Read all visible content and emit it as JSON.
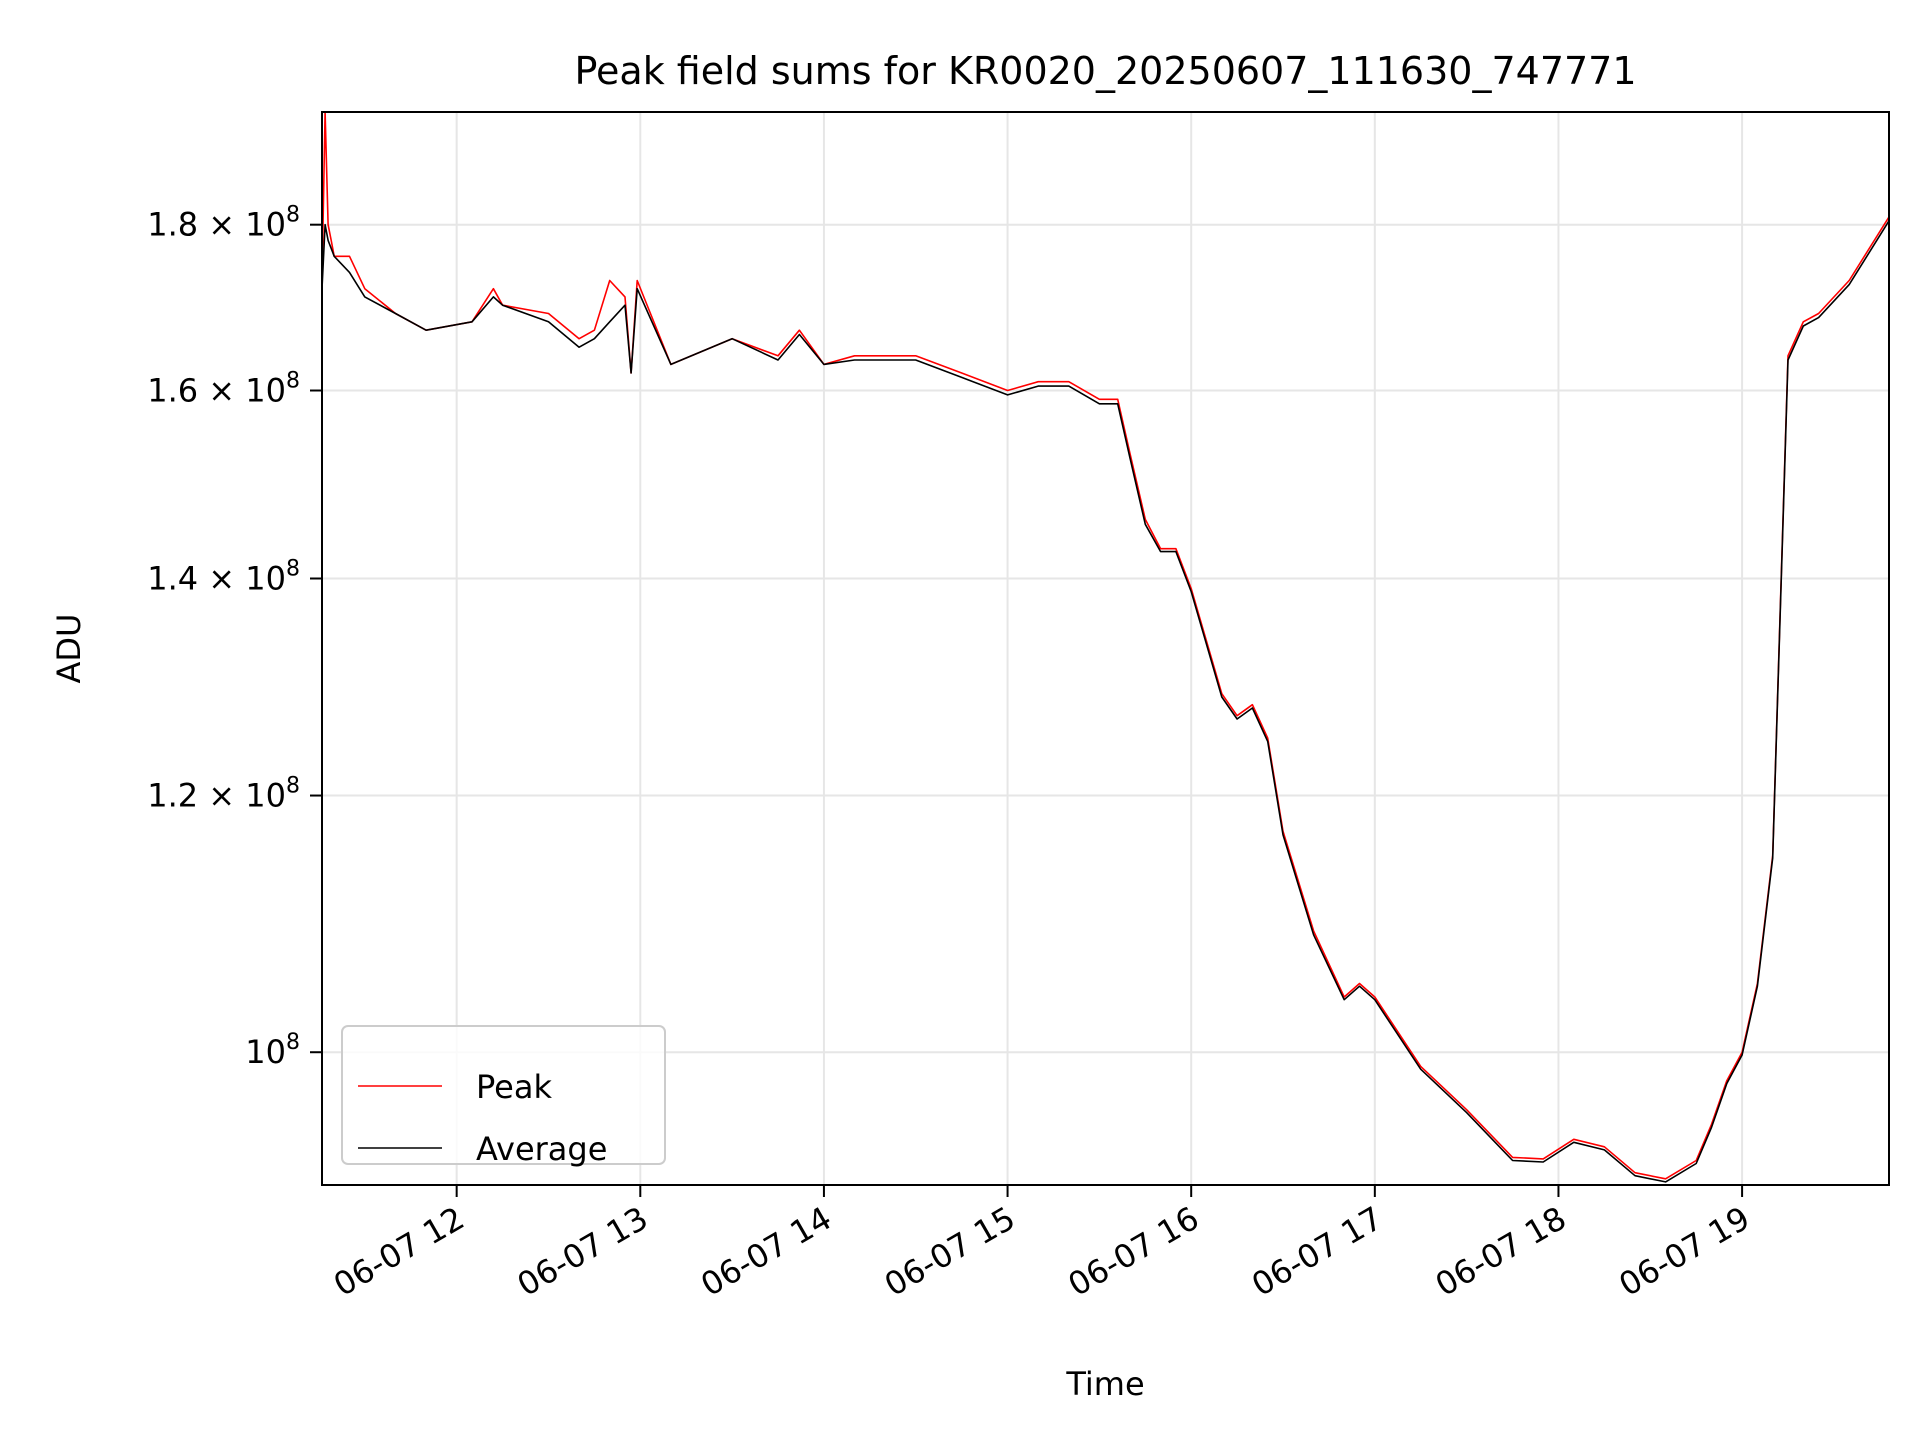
{
  "chart_data": {
    "type": "line",
    "title": "Peak field sums for KR0020_20250607_111630_747771",
    "xlabel": "Time",
    "ylabel": "ADU",
    "yscale": "log",
    "grid": true,
    "legend_placement": "lower-left",
    "xlim": [
      "2025-06-07 11:16",
      "2025-06-07 19:48"
    ],
    "ylim": [
      91000000,
      195000000
    ],
    "x_ticks": [
      {
        "at": "2025-06-07 12:00",
        "label": "06-07 12"
      },
      {
        "at": "2025-06-07 13:00",
        "label": "06-07 13"
      },
      {
        "at": "2025-06-07 14:00",
        "label": "06-07 14"
      },
      {
        "at": "2025-06-07 15:00",
        "label": "06-07 15"
      },
      {
        "at": "2025-06-07 16:00",
        "label": "06-07 16"
      },
      {
        "at": "2025-06-07 17:00",
        "label": "06-07 17"
      },
      {
        "at": "2025-06-07 18:00",
        "label": "06-07 18"
      },
      {
        "at": "2025-06-07 19:00",
        "label": "06-07 19"
      }
    ],
    "y_ticks": [
      {
        "at": 100000000,
        "label": "10",
        "exp": "8"
      },
      {
        "at": 120000000,
        "label": "1.2 × 10",
        "exp": "8"
      },
      {
        "at": 140000000,
        "label": "1.4 × 10",
        "exp": "8"
      },
      {
        "at": 160000000,
        "label": "1.6 × 10",
        "exp": "8"
      },
      {
        "at": 180000000,
        "label": "1.8 × 10",
        "exp": "8"
      }
    ],
    "colors": {
      "peak": "#ff0000",
      "average": "#000000",
      "grid": "#e6e6e6"
    },
    "series": [
      {
        "name": "Peak",
        "color": "#ff0000",
        "x": [
          "2025-06-07 11:16",
          "2025-06-07 11:17",
          "2025-06-07 11:18",
          "2025-06-07 11:19",
          "2025-06-07 11:20",
          "2025-06-07 11:25",
          "2025-06-07 11:30",
          "2025-06-07 11:40",
          "2025-06-07 11:50",
          "2025-06-07 12:05",
          "2025-06-07 12:12",
          "2025-06-07 12:15",
          "2025-06-07 12:30",
          "2025-06-07 12:40",
          "2025-06-07 12:45",
          "2025-06-07 12:50",
          "2025-06-07 12:55",
          "2025-06-07 12:57",
          "2025-06-07 12:59",
          "2025-06-07 13:10",
          "2025-06-07 13:30",
          "2025-06-07 13:45",
          "2025-06-07 13:52",
          "2025-06-07 14:00",
          "2025-06-07 14:10",
          "2025-06-07 14:30",
          "2025-06-07 14:45",
          "2025-06-07 15:00",
          "2025-06-07 15:10",
          "2025-06-07 15:20",
          "2025-06-07 15:30",
          "2025-06-07 15:36",
          "2025-06-07 15:40",
          "2025-06-07 15:45",
          "2025-06-07 15:50",
          "2025-06-07 15:55",
          "2025-06-07 16:00",
          "2025-06-07 16:10",
          "2025-06-07 16:15",
          "2025-06-07 16:20",
          "2025-06-07 16:25",
          "2025-06-07 16:30",
          "2025-06-07 16:40",
          "2025-06-07 16:50",
          "2025-06-07 16:55",
          "2025-06-07 17:00",
          "2025-06-07 17:15",
          "2025-06-07 17:30",
          "2025-06-07 17:45",
          "2025-06-07 17:55",
          "2025-06-07 18:05",
          "2025-06-07 18:15",
          "2025-06-07 18:25",
          "2025-06-07 18:35",
          "2025-06-07 18:45",
          "2025-06-07 18:50",
          "2025-06-07 18:55",
          "2025-06-07 19:00",
          "2025-06-07 19:05",
          "2025-06-07 19:10",
          "2025-06-07 19:15",
          "2025-06-07 19:20",
          "2025-06-07 19:25",
          "2025-06-07 19:35",
          "2025-06-07 19:48"
        ],
        "y": [
          173000000,
          195000000,
          180000000,
          178000000,
          176000000,
          176000000,
          172000000,
          169000000,
          167000000,
          168000000,
          172000000,
          170000000,
          169000000,
          166000000,
          167000000,
          173000000,
          171000000,
          162000000,
          173000000,
          163000000,
          166000000,
          164000000,
          167000000,
          163000000,
          164000000,
          164000000,
          162000000,
          160000000,
          161000000,
          161000000,
          159000000,
          159000000,
          153000000,
          146000000,
          143000000,
          143000000,
          139000000,
          129000000,
          127000000,
          128000000,
          125000000,
          117000000,
          109000000,
          104000000,
          105000000,
          104000000,
          99000000,
          96000000,
          92800000,
          92700000,
          94000000,
          93500000,
          91800000,
          91400000,
          92600000,
          95000000,
          98000000,
          100000000,
          105000000,
          115000000,
          164000000,
          168000000,
          169000000,
          173000000,
          181000000
        ]
      },
      {
        "name": "Average",
        "color": "#000000",
        "x": [
          "2025-06-07 11:16",
          "2025-06-07 11:17",
          "2025-06-07 11:18",
          "2025-06-07 11:19",
          "2025-06-07 11:20",
          "2025-06-07 11:25",
          "2025-06-07 11:30",
          "2025-06-07 11:40",
          "2025-06-07 11:50",
          "2025-06-07 12:05",
          "2025-06-07 12:12",
          "2025-06-07 12:15",
          "2025-06-07 12:30",
          "2025-06-07 12:40",
          "2025-06-07 12:45",
          "2025-06-07 12:50",
          "2025-06-07 12:55",
          "2025-06-07 12:57",
          "2025-06-07 12:59",
          "2025-06-07 13:10",
          "2025-06-07 13:30",
          "2025-06-07 13:45",
          "2025-06-07 13:52",
          "2025-06-07 14:00",
          "2025-06-07 14:10",
          "2025-06-07 14:30",
          "2025-06-07 14:45",
          "2025-06-07 15:00",
          "2025-06-07 15:10",
          "2025-06-07 15:20",
          "2025-06-07 15:30",
          "2025-06-07 15:36",
          "2025-06-07 15:40",
          "2025-06-07 15:45",
          "2025-06-07 15:50",
          "2025-06-07 15:55",
          "2025-06-07 16:00",
          "2025-06-07 16:10",
          "2025-06-07 16:15",
          "2025-06-07 16:20",
          "2025-06-07 16:25",
          "2025-06-07 16:30",
          "2025-06-07 16:40",
          "2025-06-07 16:50",
          "2025-06-07 16:55",
          "2025-06-07 17:00",
          "2025-06-07 17:15",
          "2025-06-07 17:30",
          "2025-06-07 17:45",
          "2025-06-07 17:55",
          "2025-06-07 18:05",
          "2025-06-07 18:15",
          "2025-06-07 18:25",
          "2025-06-07 18:35",
          "2025-06-07 18:45",
          "2025-06-07 18:50",
          "2025-06-07 18:55",
          "2025-06-07 19:00",
          "2025-06-07 19:05",
          "2025-06-07 19:10",
          "2025-06-07 19:15",
          "2025-06-07 19:20",
          "2025-06-07 19:25",
          "2025-06-07 19:35",
          "2025-06-07 19:48"
        ],
        "y": [
          172000000,
          180000000,
          178000000,
          177000000,
          176000000,
          174000000,
          171000000,
          169000000,
          167000000,
          168000000,
          171000000,
          170000000,
          168000000,
          165000000,
          166000000,
          168000000,
          170000000,
          162000000,
          172000000,
          163000000,
          166000000,
          163500000,
          166500000,
          163000000,
          163500000,
          163500000,
          161500000,
          159500000,
          160500000,
          160500000,
          158500000,
          158500000,
          152500000,
          145500000,
          142700000,
          142700000,
          138700000,
          128700000,
          126700000,
          127700000,
          124700000,
          116700000,
          108700000,
          103800000,
          104800000,
          103800000,
          98800000,
          95800000,
          92600000,
          92500000,
          93800000,
          93300000,
          91600000,
          91200000,
          92400000,
          94800000,
          97800000,
          99800000,
          104800000,
          114800000,
          163500000,
          167500000,
          168500000,
          172500000,
          180500000
        ]
      }
    ]
  }
}
